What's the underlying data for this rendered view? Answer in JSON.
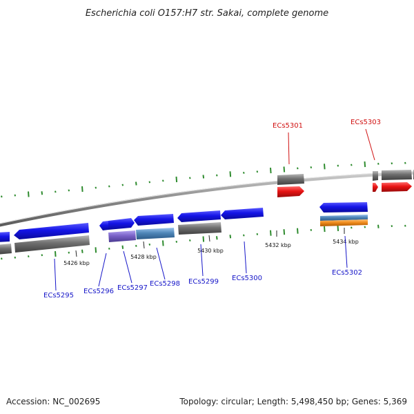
{
  "title": "Escherichia coli O157:H7 str. Sakai, complete genome",
  "footer": {
    "accession": "Accession: NC_002695",
    "summary": "Topology: circular; Length: 5,498,450 bp; Genes: 5,369"
  },
  "colors": {
    "cds_forward": "#1414e6",
    "cds_reverse_label": "#d01010",
    "rna_red": "#e81414",
    "gray_feature": "#6f6f6f",
    "purple_feature": "#7a62c8",
    "steelblue_feature": "#4f86b8",
    "orange_feature": "#f08c1e",
    "gc_skew_green": "#2e8b2e",
    "backbone": "#8a8a8a"
  },
  "tick_labels": [
    {
      "id": "t5426",
      "text": "5426 kbp"
    },
    {
      "id": "t5428",
      "text": "5428 kbp"
    },
    {
      "id": "t5430",
      "text": "5430 kbp"
    },
    {
      "id": "t5432",
      "text": "5432 kbp"
    },
    {
      "id": "t5434",
      "text": "5434 kbp"
    }
  ],
  "genes_forward": [
    {
      "id": "g5295",
      "text": "ECs5295"
    },
    {
      "id": "g5296",
      "text": "ECs5296"
    },
    {
      "id": "g5297",
      "text": "ECs5297"
    },
    {
      "id": "g5298",
      "text": "ECs5298"
    },
    {
      "id": "g5299",
      "text": "ECs5299"
    },
    {
      "id": "g5300",
      "text": "ECs5300"
    },
    {
      "id": "g5302",
      "text": "ECs5302"
    }
  ],
  "genes_reverse": [
    {
      "id": "g5301",
      "text": "ECs5301"
    },
    {
      "id": "g5303",
      "text": "ECs5303"
    }
  ]
}
